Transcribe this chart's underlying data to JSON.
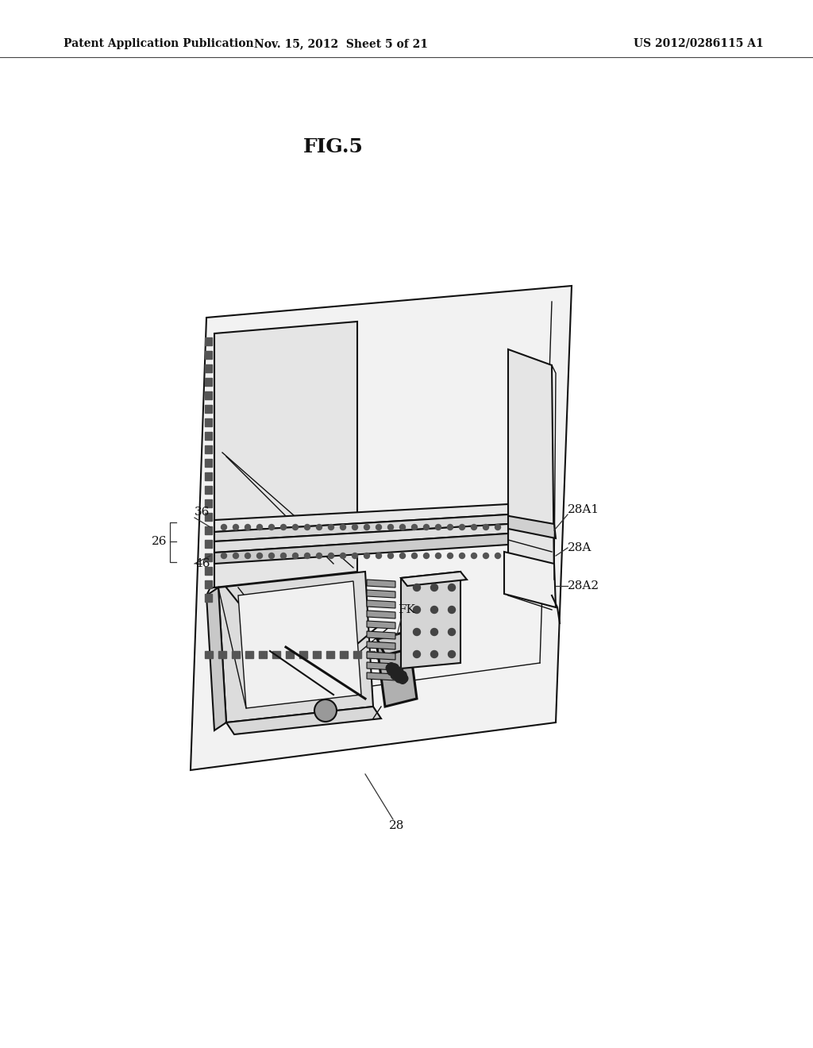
{
  "bg_color": "#ffffff",
  "header_left": "Patent Application Publication",
  "header_center": "Nov. 15, 2012  Sheet 5 of 21",
  "header_right": "US 2012/0286115 A1",
  "fig_label": "FIG.5",
  "color_main": "#111111",
  "color_light": "#e8e8e8",
  "color_mid": "#d0d0d0",
  "color_dark": "#888888"
}
